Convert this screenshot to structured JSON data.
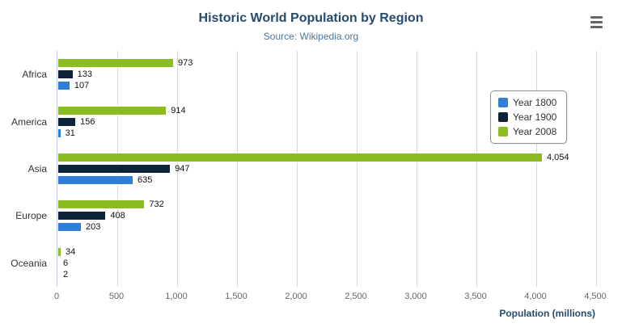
{
  "header": {
    "title": "Historic World Population by Region",
    "subtitle": "Source: Wikipedia.org",
    "menu_icon": "hamburger-menu-icon"
  },
  "chart_data": {
    "type": "bar",
    "orientation": "horizontal",
    "title": "Historic World Population by Region",
    "subtitle": "Source: Wikipedia.org",
    "categories": [
      "Africa",
      "America",
      "Asia",
      "Europe",
      "Oceania"
    ],
    "series": [
      {
        "name": "Year 1800",
        "color": "#2f7ed8",
        "values": [
          107,
          31,
          635,
          203,
          2
        ]
      },
      {
        "name": "Year 1900",
        "color": "#0d233a",
        "values": [
          133,
          156,
          947,
          408,
          6
        ]
      },
      {
        "name": "Year 2008",
        "color": "#8bbc21",
        "values": [
          973,
          914,
          4054,
          732,
          34
        ]
      }
    ],
    "display_order_top_to_bottom": [
      "Year 2008",
      "Year 1900",
      "Year 1800"
    ],
    "xlabel": "Population (millions)",
    "xlim": [
      0,
      4500
    ],
    "x_ticks": [
      0,
      500,
      1000,
      1500,
      2000,
      2500,
      3000,
      3500,
      4000,
      4500
    ],
    "grid": "vertical",
    "legend_position": "right",
    "data_labels": true
  },
  "colors": {
    "title": "#274b6d",
    "subtitle": "#4d759e",
    "gridline": "#d8d8d8",
    "axis_line": "#c0d0e0",
    "tick_text": "#666666",
    "legend_border": "#909090"
  }
}
